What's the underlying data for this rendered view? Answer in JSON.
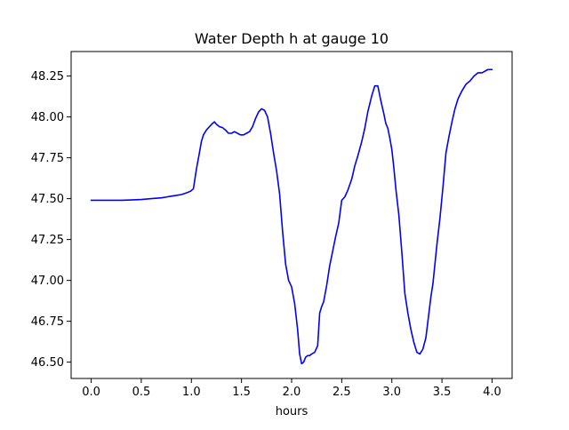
{
  "chart_data": {
    "type": "line",
    "title": "Water Depth h at gauge 10",
    "xlabel": "hours",
    "ylabel": "",
    "xlim": [
      -0.2,
      4.2
    ],
    "ylim": [
      46.4,
      48.4
    ],
    "grid": false,
    "legend": "none",
    "xticks": [
      0.0,
      0.5,
      1.0,
      1.5,
      2.0,
      2.5,
      3.0,
      3.5,
      4.0
    ],
    "xtick_labels": [
      "0.0",
      "0.5",
      "1.0",
      "1.5",
      "2.0",
      "2.5",
      "3.0",
      "3.5",
      "4.0"
    ],
    "yticks": [
      46.5,
      46.75,
      47.0,
      47.25,
      47.5,
      47.75,
      48.0,
      48.25
    ],
    "ytick_labels": [
      "46.50",
      "46.75",
      "47.00",
      "47.25",
      "47.50",
      "47.75",
      "48.00",
      "48.25"
    ],
    "series": [
      {
        "color": "#0000ff",
        "x": [
          0.0,
          0.1,
          0.2,
          0.3,
          0.4,
          0.5,
          0.6,
          0.7,
          0.75,
          0.8,
          0.85,
          0.9,
          0.95,
          0.99,
          1.02,
          1.05,
          1.08,
          1.1,
          1.12,
          1.15,
          1.18,
          1.21,
          1.23,
          1.25,
          1.28,
          1.31,
          1.34,
          1.37,
          1.4,
          1.43,
          1.46,
          1.49,
          1.52,
          1.55,
          1.58,
          1.61,
          1.64,
          1.67,
          1.7,
          1.73,
          1.76,
          1.79,
          1.82,
          1.85,
          1.88,
          1.91,
          1.94,
          1.97,
          2.0,
          2.03,
          2.06,
          2.08,
          2.1,
          2.12,
          2.14,
          2.16,
          2.18,
          2.2,
          2.23,
          2.26,
          2.28,
          2.3,
          2.32,
          2.35,
          2.38,
          2.41,
          2.44,
          2.47,
          2.5,
          2.53,
          2.56,
          2.6,
          2.63,
          2.66,
          2.7,
          2.73,
          2.76,
          2.8,
          2.83,
          2.86,
          2.89,
          2.92,
          2.94,
          2.96,
          2.98,
          3.0,
          3.02,
          3.04,
          3.07,
          3.1,
          3.13,
          3.16,
          3.19,
          3.22,
          3.25,
          3.28,
          3.31,
          3.34,
          3.37,
          3.39,
          3.41,
          3.43,
          3.45,
          3.48,
          3.51,
          3.54,
          3.57,
          3.6,
          3.63,
          3.66,
          3.7,
          3.74,
          3.78,
          3.82,
          3.86,
          3.9,
          3.93,
          3.96,
          4.0
        ],
        "y": [
          47.49,
          47.49,
          47.49,
          47.49,
          47.492,
          47.495,
          47.5,
          47.505,
          47.51,
          47.515,
          47.52,
          47.525,
          47.535,
          47.545,
          47.56,
          47.68,
          47.78,
          47.85,
          47.89,
          47.92,
          47.94,
          47.96,
          47.97,
          47.955,
          47.94,
          47.935,
          47.92,
          47.9,
          47.9,
          47.91,
          47.9,
          47.89,
          47.89,
          47.9,
          47.91,
          47.94,
          47.99,
          48.03,
          48.05,
          48.04,
          48.0,
          47.9,
          47.78,
          47.67,
          47.53,
          47.3,
          47.1,
          47.0,
          46.96,
          46.86,
          46.7,
          46.55,
          46.49,
          46.5,
          46.53,
          46.54,
          46.54,
          46.55,
          46.56,
          46.6,
          46.8,
          46.84,
          46.87,
          46.97,
          47.09,
          47.18,
          47.27,
          47.35,
          47.49,
          47.51,
          47.55,
          47.62,
          47.7,
          47.76,
          47.85,
          47.93,
          48.03,
          48.13,
          48.19,
          48.19,
          48.1,
          48.02,
          47.96,
          47.93,
          47.87,
          47.8,
          47.69,
          47.56,
          47.4,
          47.17,
          46.92,
          46.8,
          46.7,
          46.62,
          46.56,
          46.55,
          46.58,
          46.65,
          46.8,
          46.9,
          46.98,
          47.1,
          47.22,
          47.38,
          47.57,
          47.78,
          47.88,
          47.97,
          48.05,
          48.11,
          48.16,
          48.2,
          48.22,
          48.25,
          48.27,
          48.27,
          48.28,
          48.29,
          48.29
        ]
      }
    ]
  }
}
